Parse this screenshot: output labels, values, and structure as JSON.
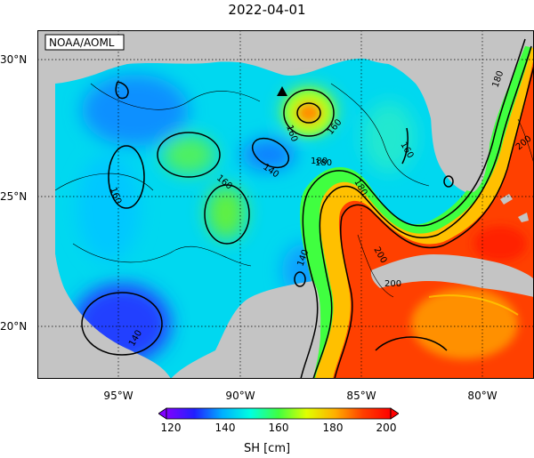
{
  "title": "2022-04-01",
  "credit": "NOAA/AOML",
  "x_ticks": [
    "95°W",
    "90°W",
    "85°W",
    "80°W"
  ],
  "y_ticks": [
    "30°N",
    "25°N",
    "20°N"
  ],
  "contour_labels": [
    "140",
    "140",
    "140",
    "160",
    "160",
    "160",
    "160",
    "160",
    "180",
    "180",
    "180",
    "180",
    "200",
    "200",
    "200"
  ],
  "colorbar": {
    "title": "SH [cm]",
    "ticks": [
      "120",
      "140",
      "160",
      "180",
      "200"
    ],
    "colors": [
      "#8000ff",
      "#2020ff",
      "#00b0ff",
      "#00ffe0",
      "#40ff40",
      "#e0ff00",
      "#ffb000",
      "#ff4000",
      "#ff0000"
    ]
  }
}
